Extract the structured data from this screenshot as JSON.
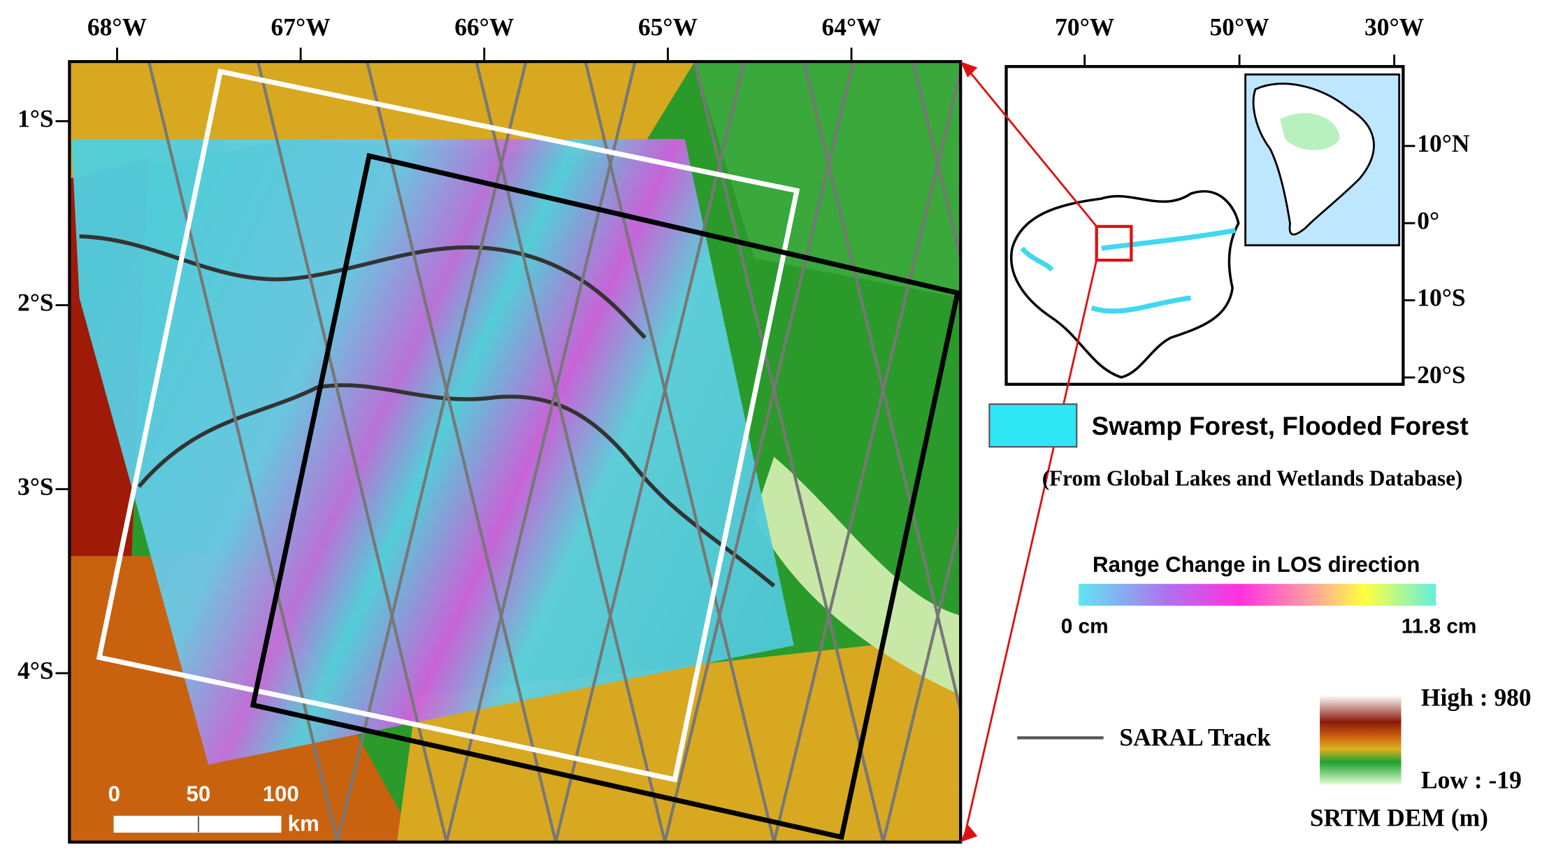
{
  "main_map": {
    "lon_labels": [
      "68°W",
      "67°W",
      "66°W",
      "65°W",
      "64°W"
    ],
    "lat_labels": [
      "1°S",
      "2°S",
      "3°S",
      "4°S"
    ],
    "scale_bar": {
      "labels": [
        "0",
        "50",
        "100"
      ],
      "unit": "km"
    }
  },
  "inset_map": {
    "lon_labels": [
      "70°W",
      "50°W",
      "30°W"
    ],
    "lat_labels": [
      "10°N",
      "0°",
      "10°S",
      "20°S"
    ]
  },
  "legend": {
    "swamp": "Swamp Forest, Flooded Forest",
    "source": "(From Global Lakes and Wetlands Database)",
    "colorbar_title": "Range Change in LOS direction",
    "colorbar_min": "0 cm",
    "colorbar_max": "11.8 cm",
    "track": "SARAL Track",
    "dem_high": "High : 980",
    "dem_low": "Low : -19",
    "dem_title": "SRTM DEM (m)"
  }
}
